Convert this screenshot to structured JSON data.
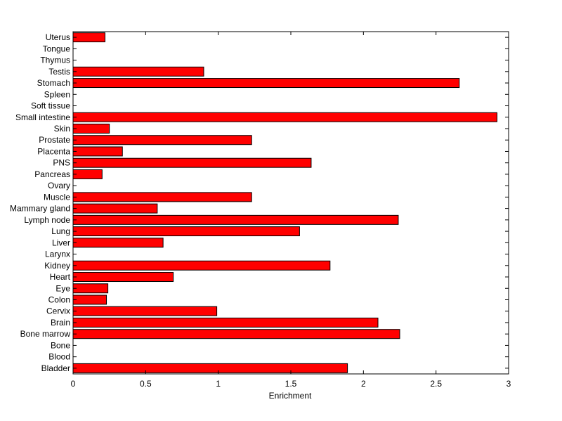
{
  "chart_data": {
    "type": "bar",
    "orientation": "horizontal",
    "title": "",
    "xlabel": "Enrichment",
    "ylabel": "",
    "xlim": [
      0,
      3
    ],
    "xticks": [
      0,
      0.5,
      1,
      1.5,
      2,
      2.5,
      3
    ],
    "xtick_labels": [
      "0",
      "0.5",
      "1",
      "1.5",
      "2",
      "2.5",
      "3"
    ],
    "grid": false,
    "bar_color": "#ff0000",
    "bar_edge_color": "#000000",
    "categories": [
      "Bladder",
      "Blood",
      "Bone",
      "Bone marrow",
      "Brain",
      "Cervix",
      "Colon",
      "Eye",
      "Heart",
      "Kidney",
      "Larynx",
      "Liver",
      "Lung",
      "Lymph node",
      "Mammary gland",
      "Muscle",
      "Ovary",
      "Pancreas",
      "PNS",
      "Placenta",
      "Prostate",
      "Skin",
      "Small intestine",
      "Soft tissue",
      "Spleen",
      "Stomach",
      "Testis",
      "Thymus",
      "Tongue",
      "Uterus"
    ],
    "values": [
      1.89,
      0,
      0,
      2.25,
      2.1,
      0.99,
      0.23,
      0.24,
      0.69,
      1.77,
      0,
      0.62,
      1.56,
      2.24,
      0.58,
      1.23,
      0,
      0.2,
      1.64,
      0.34,
      1.23,
      0.25,
      2.92,
      0,
      0,
      2.66,
      0.9,
      0,
      0,
      0.22
    ]
  }
}
